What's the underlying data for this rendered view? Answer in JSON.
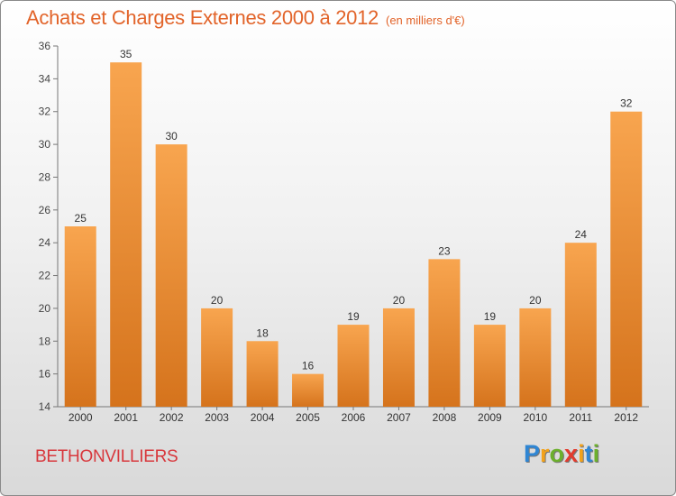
{
  "header": {
    "title": "Achats et Charges Externes 2000 à 2012",
    "unit": "(en milliers d'€)"
  },
  "footer": {
    "city": "BETHONVILLIERS"
  },
  "logo": {
    "text": "Proxiti",
    "letters": [
      {
        "char": "P",
        "color": "#2f86d4"
      },
      {
        "char": "r",
        "color": "#f2a21b"
      },
      {
        "char": "o",
        "color": "#6cb02c"
      },
      {
        "char": "x",
        "color": "#e23b2e"
      },
      {
        "char": "i",
        "color": "#f2a21b"
      },
      {
        "char": "t",
        "color": "#2f86d4"
      },
      {
        "char": "i",
        "color": "#6cb02c"
      }
    ]
  },
  "colors": {
    "bar_light": "#f8a54f",
    "bar_dark": "#d5731c",
    "title": "#e2642a",
    "city": "#d8373c"
  },
  "chart_data": {
    "type": "bar",
    "title": "Achats et Charges Externes 2000 à 2012",
    "subtitle": "(en milliers d'€)",
    "categories": [
      "2000",
      "2001",
      "2002",
      "2003",
      "2004",
      "2005",
      "2006",
      "2007",
      "2008",
      "2009",
      "2010",
      "2011",
      "2012"
    ],
    "values": [
      25,
      35,
      30,
      20,
      18,
      16,
      19,
      20,
      23,
      19,
      20,
      24,
      32
    ],
    "ylim": [
      14,
      36
    ],
    "yticks": [
      14,
      16,
      18,
      20,
      22,
      24,
      26,
      28,
      30,
      32,
      34,
      36
    ],
    "grid": false,
    "legend": "none"
  }
}
